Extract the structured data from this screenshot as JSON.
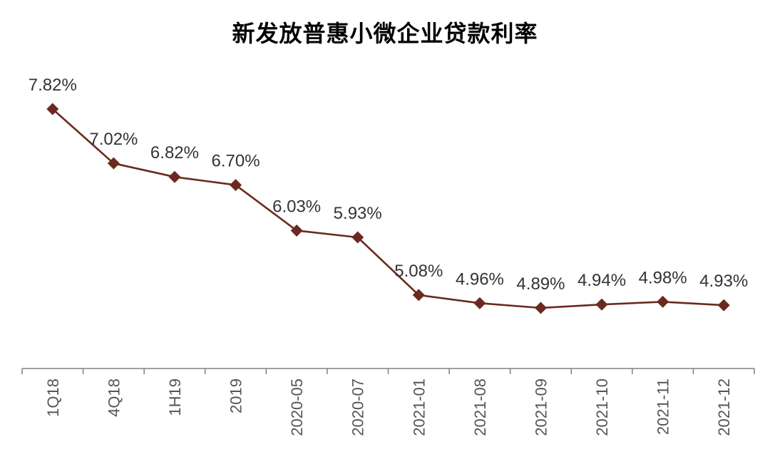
{
  "chart_data": {
    "type": "line",
    "title": "新发放普惠小微企业贷款利率",
    "xlabel": "",
    "ylabel": "",
    "categories": [
      "1Q18",
      "4Q18",
      "1H19",
      "2019",
      "2020-05",
      "2020-07",
      "2021-01",
      "2021-08",
      "2021-09",
      "2021-10",
      "2021-11",
      "2021-12"
    ],
    "series": [
      {
        "values": [
          7.82,
          7.02,
          6.82,
          6.7,
          6.03,
          5.93,
          5.08,
          4.96,
          4.89,
          4.94,
          4.98,
          4.93
        ],
        "labels": [
          "7.82%",
          "7.02%",
          "6.82%",
          "6.70%",
          "6.03%",
          "5.93%",
          "5.08%",
          "4.96%",
          "4.89%",
          "4.94%",
          "4.98%",
          "4.93%"
        ]
      }
    ],
    "ylim": [
      3.9,
      8.3
    ],
    "grid": false,
    "legend": "none",
    "colors": {
      "line": "#6b2a1f",
      "marker": "#6b2a1f",
      "axis": "#808080",
      "label": "#333333"
    }
  }
}
